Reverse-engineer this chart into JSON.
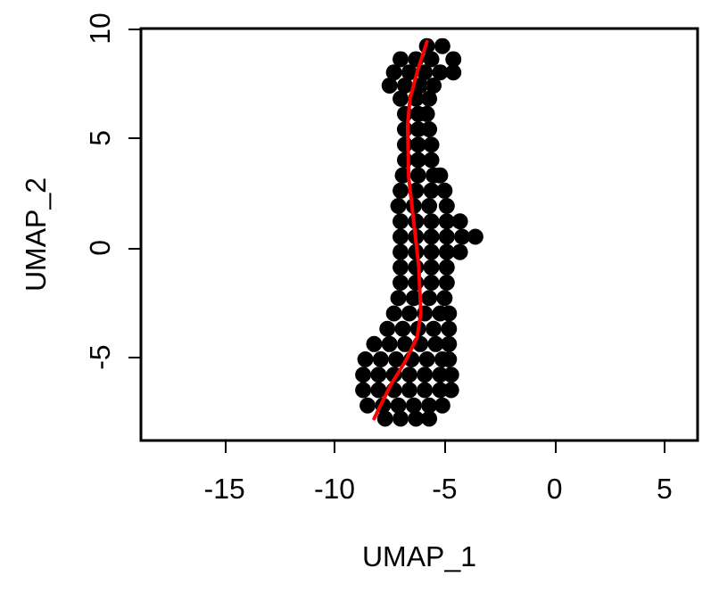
{
  "chart_data": {
    "type": "scatter",
    "xlabel": "UMAP_1",
    "ylabel": "UMAP_2",
    "xlim": [
      -18.8,
      6.5
    ],
    "ylim": [
      -8.8,
      10
    ],
    "xticks": [
      -15,
      -10,
      -5,
      0,
      5
    ],
    "yticks": [
      -5,
      0,
      5,
      10
    ],
    "grid": false,
    "series": [
      {
        "color": "#000000",
        "marker": "circle",
        "x": [
          -5.8,
          -5.1,
          -7.0,
          -6.3,
          -5.6,
          -4.6,
          -7.3,
          -6.6,
          -5.9,
          -5.2,
          -4.6,
          -7.5,
          -6.8,
          -6.1,
          -5.5,
          -7.0,
          -6.3,
          -5.7,
          -6.8,
          -6.2,
          -5.8,
          -6.8,
          -6.2,
          -5.7,
          -6.8,
          -6.2,
          -5.6,
          -6.8,
          -6.2,
          -5.6,
          -6.9,
          -6.2,
          -5.5,
          -5.2,
          -7.0,
          -6.3,
          -5.6,
          -5.0,
          -7.1,
          -6.4,
          -5.7,
          -4.9,
          -7.0,
          -6.3,
          -5.6,
          -4.9,
          -4.3,
          -7.0,
          -6.3,
          -5.6,
          -4.9,
          -4.2,
          -3.6,
          -7.0,
          -6.3,
          -5.6,
          -4.9,
          -4.3,
          -7.0,
          -6.3,
          -5.6,
          -4.9,
          -7.0,
          -6.3,
          -5.6,
          -4.9,
          -7.1,
          -6.4,
          -5.7,
          -5.0,
          -7.3,
          -6.6,
          -5.9,
          -5.2,
          -4.8,
          -7.6,
          -6.9,
          -6.2,
          -5.5,
          -4.8,
          -8.2,
          -7.5,
          -6.8,
          -6.1,
          -5.4,
          -4.8,
          -8.6,
          -7.9,
          -7.2,
          -6.5,
          -5.8,
          -5.1,
          -4.8,
          -8.7,
          -8.0,
          -7.3,
          -6.6,
          -5.9,
          -5.2,
          -4.7,
          -8.7,
          -8.0,
          -7.3,
          -6.6,
          -5.9,
          -5.2,
          -4.7,
          -8.5,
          -7.8,
          -7.1,
          -6.4,
          -5.7,
          -5.1,
          -7.7,
          -7.0,
          -6.3,
          -5.7
        ],
        "values": [
          9.2,
          9.2,
          8.6,
          8.6,
          8.6,
          8.6,
          8.0,
          8.0,
          8.0,
          8.0,
          8.0,
          7.4,
          7.4,
          7.4,
          7.4,
          6.8,
          6.8,
          6.8,
          6.1,
          6.1,
          6.1,
          5.4,
          5.4,
          5.4,
          4.7,
          4.7,
          4.7,
          4.0,
          4.0,
          4.0,
          3.3,
          3.3,
          3.3,
          3.3,
          2.6,
          2.6,
          2.6,
          2.6,
          1.9,
          1.9,
          1.9,
          1.9,
          1.2,
          1.2,
          1.2,
          1.2,
          1.2,
          0.5,
          0.5,
          0.5,
          0.5,
          0.5,
          0.5,
          -0.2,
          -0.2,
          -0.2,
          -0.2,
          -0.2,
          -0.9,
          -0.9,
          -0.9,
          -0.9,
          -1.6,
          -1.6,
          -1.6,
          -1.6,
          -2.3,
          -2.3,
          -2.3,
          -2.3,
          -3.0,
          -3.0,
          -3.0,
          -3.0,
          -3.0,
          -3.7,
          -3.7,
          -3.7,
          -3.7,
          -3.7,
          -4.4,
          -4.4,
          -4.4,
          -4.4,
          -4.4,
          -4.4,
          -5.1,
          -5.1,
          -5.1,
          -5.1,
          -5.1,
          -5.1,
          -5.1,
          -5.8,
          -5.8,
          -5.8,
          -5.8,
          -5.8,
          -5.8,
          -5.8,
          -6.5,
          -6.5,
          -6.5,
          -6.5,
          -6.5,
          -6.5,
          -6.5,
          -7.2,
          -7.2,
          -7.2,
          -7.2,
          -7.2,
          -7.2,
          -7.8,
          -7.8,
          -7.8,
          -7.8
        ]
      },
      {
        "type": "line",
        "color": "#ff0000",
        "marker": "none",
        "line_style": "solid",
        "x": [
          -5.8,
          -6.25,
          -6.57,
          -6.68,
          -6.63,
          -6.38,
          -6.17,
          -6.08,
          -6.25,
          -6.79,
          -7.47,
          -8.2
        ],
        "values": [
          9.4,
          8.0,
          6.8,
          5.6,
          3.2,
          1.0,
          -0.9,
          -3.0,
          -4.1,
          -5.2,
          -6.3,
          -7.8
        ]
      }
    ]
  }
}
